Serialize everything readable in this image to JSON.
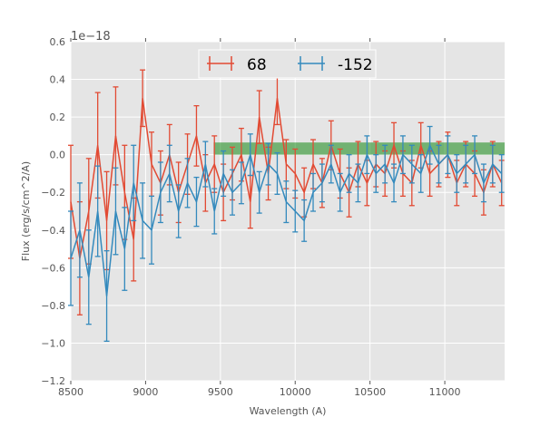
{
  "chart_data": {
    "type": "line",
    "title": "",
    "xlabel": "Wavelength (A)",
    "ylabel": "Flux (erg/s/cm^2/A)",
    "offset_label": "1e−18",
    "xlim": [
      8500,
      11400
    ],
    "ylim": [
      -1.2,
      0.6
    ],
    "grid": true,
    "legend_placement": "top-center",
    "xticks": [
      8500,
      9000,
      9500,
      10000,
      10500,
      11000
    ],
    "xtick_labels": [
      "8500",
      "9000",
      "9500",
      "10000",
      "10500",
      "11000"
    ],
    "yticks": [
      0.6,
      0.4,
      0.2,
      0.0,
      -0.2,
      -0.4,
      -0.6,
      -0.8,
      -1.0,
      -1.2
    ],
    "ytick_labels": [
      "0.6",
      "0.4",
      "0.2",
      "0.0",
      "−0.2",
      "−0.4",
      "−0.6",
      "−0.8",
      "−1.0",
      "−1.2"
    ],
    "band": {
      "x_start": 9455,
      "x_end": 11400,
      "y_low": 0.0,
      "y_high": 0.065,
      "color": "#008000"
    },
    "x": [
      8500,
      8560,
      8620,
      8680,
      8740,
      8800,
      8860,
      8920,
      8980,
      9040,
      9100,
      9160,
      9220,
      9280,
      9340,
      9400,
      9460,
      9520,
      9580,
      9640,
      9700,
      9760,
      9820,
      9880,
      9940,
      10000,
      10060,
      10120,
      10180,
      10240,
      10300,
      10360,
      10420,
      10480,
      10540,
      10600,
      10660,
      10720,
      10780,
      10840,
      10900,
      10960,
      11020,
      11080,
      11140,
      11200,
      11260,
      11320,
      11380
    ],
    "series": [
      {
        "name": "68",
        "color": "#e24a33",
        "values": [
          -0.25,
          -0.55,
          -0.3,
          0.05,
          -0.35,
          0.1,
          -0.2,
          -0.45,
          0.3,
          -0.05,
          -0.15,
          0.0,
          -0.2,
          -0.05,
          0.1,
          -0.15,
          -0.05,
          -0.2,
          -0.1,
          0.0,
          -0.25,
          0.2,
          -0.1,
          0.3,
          -0.05,
          -0.1,
          -0.2,
          -0.05,
          -0.15,
          0.05,
          -0.1,
          -0.2,
          -0.05,
          -0.15,
          -0.05,
          -0.1,
          0.05,
          -0.1,
          -0.15,
          0.05,
          -0.1,
          -0.05,
          0.0,
          -0.15,
          -0.05,
          -0.1,
          -0.2,
          -0.05,
          -0.15
        ],
        "errors": [
          0.3,
          0.3,
          0.28,
          0.28,
          0.26,
          0.26,
          0.25,
          0.22,
          0.15,
          0.17,
          0.17,
          0.16,
          0.16,
          0.16,
          0.16,
          0.15,
          0.15,
          0.15,
          0.14,
          0.14,
          0.14,
          0.14,
          0.14,
          0.14,
          0.13,
          0.13,
          0.13,
          0.13,
          0.13,
          0.13,
          0.13,
          0.13,
          0.12,
          0.12,
          0.12,
          0.12,
          0.12,
          0.12,
          0.12,
          0.12,
          0.12,
          0.12,
          0.12,
          0.12,
          0.12,
          0.12,
          0.12,
          0.12,
          0.12
        ]
      },
      {
        "name": "-152",
        "color": "#348abd",
        "values": [
          -0.55,
          -0.4,
          -0.65,
          -0.3,
          -0.75,
          -0.3,
          -0.5,
          -0.15,
          -0.35,
          -0.4,
          -0.2,
          -0.1,
          -0.3,
          -0.15,
          -0.25,
          -0.05,
          -0.3,
          -0.1,
          -0.2,
          -0.15,
          0.0,
          -0.2,
          -0.05,
          -0.1,
          -0.25,
          -0.3,
          -0.35,
          -0.2,
          -0.15,
          -0.05,
          -0.2,
          -0.1,
          -0.15,
          0.0,
          -0.1,
          -0.05,
          -0.15,
          0.0,
          -0.05,
          -0.1,
          0.05,
          -0.05,
          0.0,
          -0.1,
          -0.05,
          0.0,
          -0.15,
          -0.05,
          -0.1
        ],
        "errors": [
          0.25,
          0.25,
          0.25,
          0.24,
          0.24,
          0.23,
          0.22,
          0.2,
          0.2,
          0.18,
          0.16,
          0.15,
          0.14,
          0.13,
          0.13,
          0.12,
          0.12,
          0.12,
          0.12,
          0.11,
          0.11,
          0.11,
          0.11,
          0.11,
          0.11,
          0.11,
          0.11,
          0.1,
          0.1,
          0.1,
          0.1,
          0.1,
          0.1,
          0.1,
          0.1,
          0.1,
          0.1,
          0.1,
          0.1,
          0.1,
          0.1,
          0.1,
          0.1,
          0.1,
          0.1,
          0.1,
          0.1,
          0.1,
          0.1
        ]
      }
    ]
  }
}
